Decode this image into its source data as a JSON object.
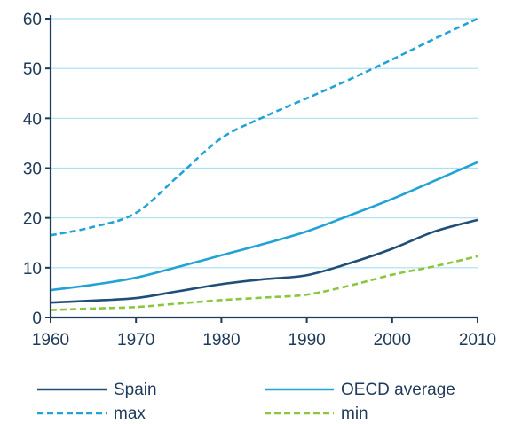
{
  "chart_data": {
    "type": "line",
    "title": "",
    "xlabel": "",
    "ylabel": "",
    "xlim": [
      1960,
      2010
    ],
    "ylim": [
      0,
      60
    ],
    "x_ticks": [
      1960,
      1970,
      1980,
      1990,
      2000,
      2010
    ],
    "y_ticks": [
      0,
      10,
      20,
      30,
      40,
      50,
      60
    ],
    "grid": "horizontal",
    "legend_position": "bottom",
    "series": [
      {
        "name": "Spain",
        "color": "#1f4e79",
        "dash": "solid",
        "points": [
          [
            1960,
            3.0
          ],
          [
            1965,
            3.4
          ],
          [
            1970,
            3.9
          ],
          [
            1975,
            5.3
          ],
          [
            1980,
            6.7
          ],
          [
            1985,
            7.7
          ],
          [
            1990,
            8.5
          ],
          [
            1995,
            10.9
          ],
          [
            2000,
            13.8
          ],
          [
            2005,
            17.3
          ],
          [
            2010,
            19.6
          ]
        ]
      },
      {
        "name": "OECD average",
        "color": "#22a3d6",
        "dash": "solid",
        "points": [
          [
            1960,
            5.5
          ],
          [
            1965,
            6.6
          ],
          [
            1970,
            8.0
          ],
          [
            1975,
            10.2
          ],
          [
            1980,
            12.5
          ],
          [
            1985,
            14.8
          ],
          [
            1990,
            17.3
          ],
          [
            1995,
            20.5
          ],
          [
            2000,
            23.8
          ],
          [
            2005,
            27.5
          ],
          [
            2010,
            31.2
          ]
        ]
      },
      {
        "name": "max",
        "color": "#22a3d6",
        "dash": "dashed",
        "points": [
          [
            1960,
            16.5
          ],
          [
            1965,
            18.2
          ],
          [
            1970,
            21.0
          ],
          [
            1975,
            28.5
          ],
          [
            1980,
            36.0
          ],
          [
            1985,
            40.3
          ],
          [
            1990,
            44.0
          ],
          [
            1995,
            47.8
          ],
          [
            2000,
            51.8
          ],
          [
            2005,
            56.0
          ],
          [
            2010,
            60.0
          ]
        ]
      },
      {
        "name": "min",
        "color": "#8cc63f",
        "dash": "dashed",
        "points": [
          [
            1960,
            1.5
          ],
          [
            1965,
            1.8
          ],
          [
            1970,
            2.1
          ],
          [
            1975,
            2.8
          ],
          [
            1980,
            3.5
          ],
          [
            1985,
            4.0
          ],
          [
            1990,
            4.6
          ],
          [
            1995,
            6.4
          ],
          [
            2000,
            8.6
          ],
          [
            2005,
            10.3
          ],
          [
            2010,
            12.3
          ]
        ]
      }
    ]
  },
  "colors": {
    "axis": "#1f3a5a",
    "grid": "#a9dff2",
    "text": "#1f3a5a"
  }
}
